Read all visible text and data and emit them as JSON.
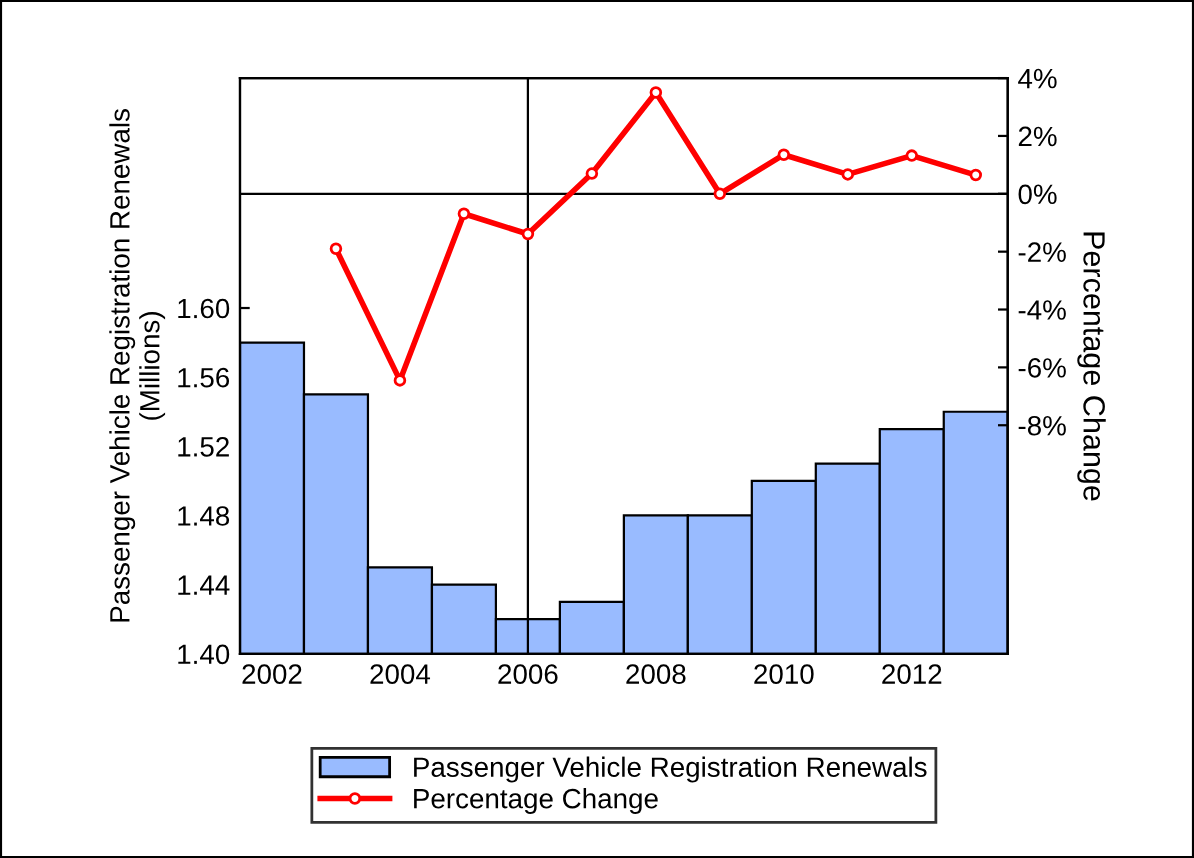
{
  "chart_data": {
    "type": "bar",
    "x": [
      2002,
      2003,
      2004,
      2005,
      2006,
      2007,
      2008,
      2009,
      2010,
      2011,
      2012,
      2013
    ],
    "series": [
      {
        "name": "Passenger Vehicle Registration Renewals",
        "color": "#99bbff",
        "values": [
          1.58,
          1.55,
          1.45,
          1.44,
          1.42,
          1.43,
          1.48,
          1.48,
          1.5,
          1.51,
          1.53,
          1.54
        ]
      },
      {
        "name": "Percentage Change",
        "type": "line",
        "axis": "y2",
        "color": "#ff0000",
        "marker": "circle",
        "x": [
          2003,
          2004,
          2005,
          2006,
          2007,
          2008,
          2009,
          2010,
          2011,
          2012,
          2013
        ],
        "values": [
          -1.9,
          -6.45,
          -0.69,
          -1.39,
          0.7,
          3.5,
          0.0,
          1.35,
          0.67,
          1.32,
          0.65
        ]
      }
    ],
    "ylabel": "Passenger Vehicle Registration Renewals\n(Millions)",
    "y2label": "Percentage Change",
    "xlim": [
      2001.5,
      2013.5
    ],
    "xticks": [
      2002,
      2004,
      2006,
      2008,
      2010,
      2012
    ],
    "ylim": [
      1.4,
      1.733
    ],
    "yticks": [
      {
        "value": 1.4,
        "label": "1.40"
      },
      {
        "value": 1.44,
        "label": "1.44"
      },
      {
        "value": 1.48,
        "label": "1.48"
      },
      {
        "value": 1.52,
        "label": "1.52"
      },
      {
        "value": 1.56,
        "label": "1.56"
      },
      {
        "value": 1.6,
        "label": "1.60"
      }
    ],
    "y2lim": [
      -15.9,
      4
    ],
    "y2ticks": [
      {
        "value": -8,
        "label": "-8%"
      },
      {
        "value": -6,
        "label": "-6%"
      },
      {
        "value": -4,
        "label": "-4%"
      },
      {
        "value": -2,
        "label": "-2%"
      },
      {
        "value": 0,
        "label": "0%"
      },
      {
        "value": 2,
        "label": "2%"
      },
      {
        "value": 4,
        "label": "4%"
      }
    ],
    "ref_lines": [
      {
        "axis": "x",
        "value": 2006,
        "color": "#000000"
      },
      {
        "axis": "y2",
        "value": 0,
        "color": "#000000"
      }
    ],
    "grid": false,
    "legend": "bottom"
  }
}
